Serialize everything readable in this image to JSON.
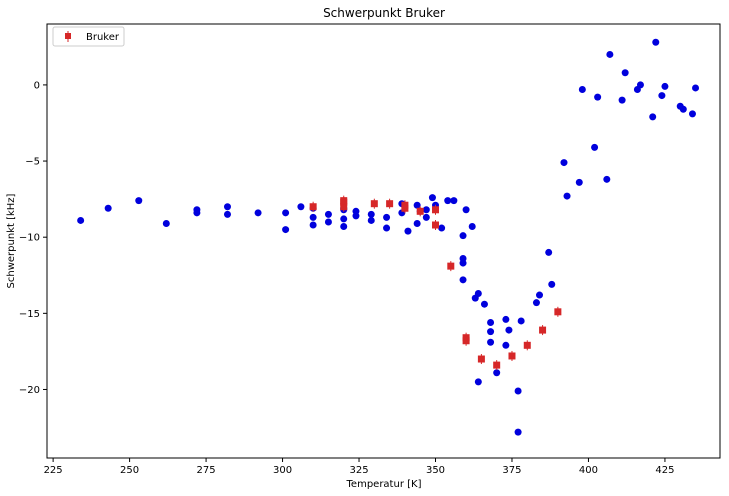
{
  "chart_data": {
    "type": "scatter",
    "title": "Schwerpunkt Bruker",
    "xlabel": "Temperatur [K]",
    "ylabel": "Schwerpunkt [kHz]",
    "xlim": [
      223,
      443
    ],
    "ylim": [
      -24.5,
      4.0
    ],
    "xticks": [
      225,
      250,
      275,
      300,
      325,
      350,
      375,
      400,
      425
    ],
    "yticks": [
      0,
      -5,
      -10,
      -15,
      -20
    ],
    "grid": false,
    "legend": {
      "position": "top-left",
      "entries": [
        "Bruker"
      ]
    },
    "series": [
      {
        "name": "",
        "marker": "circle",
        "color": "#0000dd",
        "points": [
          [
            234,
            -8.9
          ],
          [
            243,
            -8.1
          ],
          [
            253,
            -7.6
          ],
          [
            262,
            -9.1
          ],
          [
            272,
            -8.4
          ],
          [
            272,
            -8.2
          ],
          [
            282,
            -8.0
          ],
          [
            282,
            -8.5
          ],
          [
            292,
            -8.4
          ],
          [
            301,
            -9.5
          ],
          [
            301,
            -8.4
          ],
          [
            306,
            -8.0
          ],
          [
            310,
            -9.2
          ],
          [
            310,
            -8.7
          ],
          [
            310,
            -8.1
          ],
          [
            315,
            -9.0
          ],
          [
            315,
            -8.5
          ],
          [
            320,
            -9.3
          ],
          [
            320,
            -8.8
          ],
          [
            320,
            -8.2
          ],
          [
            320,
            -8.1
          ],
          [
            324,
            -8.6
          ],
          [
            324,
            -8.3
          ],
          [
            329,
            -8.9
          ],
          [
            329,
            -8.5
          ],
          [
            334,
            -9.4
          ],
          [
            334,
            -8.7
          ],
          [
            339,
            -7.8
          ],
          [
            339,
            -8.4
          ],
          [
            341,
            -9.6
          ],
          [
            344,
            -9.1
          ],
          [
            344,
            -7.9
          ],
          [
            345,
            -8.3
          ],
          [
            347,
            -8.7
          ],
          [
            347,
            -8.2
          ],
          [
            349,
            -7.4
          ],
          [
            350,
            -7.9
          ],
          [
            352,
            -9.4
          ],
          [
            354,
            -7.6
          ],
          [
            356,
            -7.6
          ],
          [
            359,
            -9.9
          ],
          [
            359,
            -11.4
          ],
          [
            359,
            -11.7
          ],
          [
            359,
            -12.8
          ],
          [
            360,
            -8.2
          ],
          [
            362,
            -9.3
          ],
          [
            363,
            -14.0
          ],
          [
            364,
            -13.7
          ],
          [
            364,
            -19.5
          ],
          [
            366,
            -14.4
          ],
          [
            368,
            -16.2
          ],
          [
            368,
            -16.9
          ],
          [
            368,
            -15.6
          ],
          [
            370,
            -18.9
          ],
          [
            373,
            -15.4
          ],
          [
            373,
            -17.1
          ],
          [
            374,
            -16.1
          ],
          [
            377,
            -20.1
          ],
          [
            377,
            -22.8
          ],
          [
            378,
            -15.5
          ],
          [
            383,
            -14.3
          ],
          [
            384,
            -13.8
          ],
          [
            387,
            -11.0
          ],
          [
            388,
            -13.1
          ],
          [
            392,
            -5.1
          ],
          [
            393,
            -7.3
          ],
          [
            397,
            -6.4
          ],
          [
            398,
            -0.3
          ],
          [
            402,
            -4.1
          ],
          [
            403,
            -0.8
          ],
          [
            406,
            -6.2
          ],
          [
            407,
            2.0
          ],
          [
            411,
            -1.0
          ],
          [
            412,
            0.8
          ],
          [
            416,
            -0.3
          ],
          [
            417,
            0.0
          ],
          [
            421,
            -2.1
          ],
          [
            422,
            2.8
          ],
          [
            424,
            -0.7
          ],
          [
            425,
            -0.1
          ],
          [
            430,
            -1.4
          ],
          [
            431,
            -1.6
          ],
          [
            434,
            -1.9
          ],
          [
            435,
            -0.2
          ]
        ]
      },
      {
        "name": "Bruker",
        "marker": "square",
        "color": "#d62728",
        "points": [
          [
            310,
            -8.0
          ],
          [
            320,
            -7.7
          ],
          [
            320,
            -8.0
          ],
          [
            320,
            -7.6
          ],
          [
            330,
            -7.8
          ],
          [
            335,
            -7.8
          ],
          [
            340,
            -7.9
          ],
          [
            340,
            -8.1
          ],
          [
            345,
            -8.3
          ],
          [
            350,
            -8.2
          ],
          [
            350,
            -9.2
          ],
          [
            355,
            -11.9
          ],
          [
            360,
            -16.6
          ],
          [
            360,
            -16.8
          ],
          [
            365,
            -18.0
          ],
          [
            370,
            -18.4
          ],
          [
            375,
            -17.8
          ],
          [
            380,
            -17.1
          ],
          [
            385,
            -16.1
          ],
          [
            390,
            -14.9
          ]
        ]
      }
    ]
  }
}
